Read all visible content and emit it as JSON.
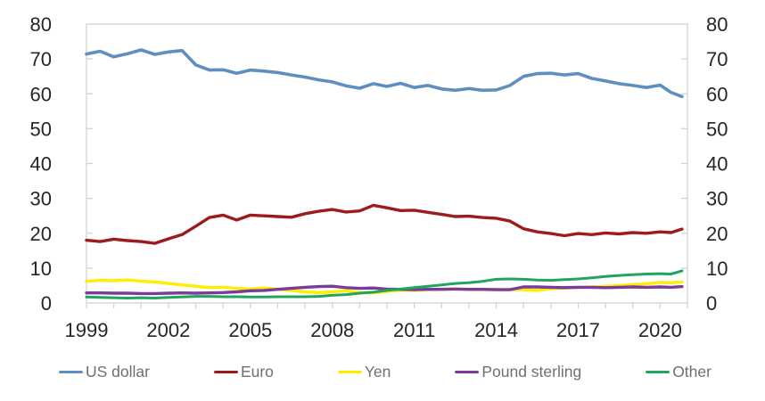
{
  "chart_data": {
    "type": "line",
    "title": "",
    "xlabel": "",
    "ylabel": "",
    "grid": "off",
    "legend_position": "bottom",
    "axis_sides": "left-right-bottom box, tick labels on both left and right",
    "ylim": [
      0,
      80
    ],
    "y_ticks": [
      0,
      10,
      20,
      30,
      40,
      50,
      60,
      70,
      80
    ],
    "x_range": [
      1999,
      2021
    ],
    "x_tick_step": 1,
    "x_label_years": [
      "1999",
      "2002",
      "2005",
      "2008",
      "2011",
      "2014",
      "2017",
      "2020"
    ],
    "axis_color": "#d3d3d3",
    "tick_label_color": "#262626",
    "legend_text_color": "#6f6f6f",
    "x": [
      1999,
      1999.5,
      2000,
      2000.5,
      2001,
      2001.5,
      2002,
      2002.5,
      2003,
      2003.5,
      2004,
      2004.5,
      2005,
      2005.5,
      2006,
      2006.5,
      2007,
      2007.5,
      2008,
      2008.5,
      2009,
      2009.5,
      2010,
      2010.5,
      2011,
      2011.5,
      2012,
      2012.5,
      2013,
      2013.5,
      2014,
      2014.5,
      2015,
      2015.5,
      2016,
      2016.5,
      2017,
      2017.5,
      2018,
      2018.5,
      2019,
      2019.5,
      2020,
      2020.4,
      2020.8
    ],
    "series": [
      {
        "name": "US dollar",
        "color": "#5e8fbe",
        "stroke_width": 3.6,
        "values": [
          71.4,
          72.2,
          70.6,
          71.5,
          72.6,
          71.3,
          72.0,
          72.4,
          68.3,
          66.8,
          66.9,
          65.9,
          66.8,
          66.5,
          66.1,
          65.4,
          64.8,
          64.0,
          63.4,
          62.3,
          61.6,
          62.9,
          62.1,
          63.0,
          61.8,
          62.4,
          61.4,
          61.0,
          61.5,
          61.0,
          61.1,
          62.4,
          65.0,
          65.8,
          65.9,
          65.4,
          65.8,
          64.4,
          63.7,
          62.9,
          62.4,
          61.8,
          62.5,
          60.4,
          59.2
        ]
      },
      {
        "name": "Euro",
        "color": "#9e1b1b",
        "stroke_width": 3.4,
        "values": [
          18.0,
          17.6,
          18.3,
          17.9,
          17.6,
          17.1,
          18.4,
          19.6,
          22.0,
          24.5,
          25.2,
          23.8,
          25.2,
          25.0,
          24.8,
          24.6,
          25.6,
          26.3,
          26.8,
          26.1,
          26.4,
          28.0,
          27.3,
          26.5,
          26.6,
          26.0,
          25.4,
          24.8,
          24.9,
          24.5,
          24.3,
          23.5,
          21.3,
          20.4,
          19.9,
          19.3,
          19.9,
          19.6,
          20.1,
          19.8,
          20.2,
          20.0,
          20.4,
          20.2,
          21.2
        ]
      },
      {
        "name": "Yen",
        "color": "#ffee00",
        "stroke_width": 3.4,
        "values": [
          6.2,
          6.5,
          6.4,
          6.6,
          6.3,
          6.0,
          5.6,
          5.2,
          4.8,
          4.4,
          4.5,
          4.2,
          4.0,
          4.3,
          3.9,
          3.6,
          3.2,
          3.0,
          3.2,
          3.5,
          3.0,
          2.9,
          3.3,
          3.7,
          3.6,
          3.8,
          4.0,
          4.1,
          3.9,
          3.8,
          3.9,
          3.8,
          3.8,
          3.6,
          4.1,
          4.3,
          4.5,
          4.6,
          4.8,
          5.0,
          5.3,
          5.5,
          5.9,
          5.8,
          6.0
        ]
      },
      {
        "name": "Pound sterling",
        "color": "#7a3b9d",
        "stroke_width": 3.4,
        "values": [
          2.9,
          2.9,
          2.8,
          2.8,
          2.7,
          2.7,
          2.8,
          2.9,
          2.8,
          2.9,
          3.0,
          3.2,
          3.5,
          3.6,
          3.9,
          4.2,
          4.5,
          4.7,
          4.8,
          4.4,
          4.2,
          4.3,
          4.0,
          3.9,
          3.8,
          3.9,
          3.9,
          4.0,
          3.9,
          3.9,
          3.8,
          3.8,
          4.6,
          4.6,
          4.5,
          4.4,
          4.5,
          4.5,
          4.4,
          4.5,
          4.6,
          4.5,
          4.6,
          4.5,
          4.7
        ]
      },
      {
        "name": "Other",
        "color": "#21a55e",
        "stroke_width": 3.0,
        "values": [
          1.7,
          1.6,
          1.5,
          1.4,
          1.5,
          1.4,
          1.6,
          1.7,
          1.9,
          1.9,
          1.8,
          1.8,
          1.7,
          1.7,
          1.8,
          1.8,
          1.8,
          1.9,
          2.2,
          2.4,
          2.8,
          3.1,
          3.6,
          4.0,
          4.4,
          4.8,
          5.2,
          5.6,
          5.8,
          6.2,
          6.8,
          6.9,
          6.8,
          6.6,
          6.5,
          6.7,
          6.9,
          7.2,
          7.6,
          7.9,
          8.1,
          8.3,
          8.4,
          8.3,
          9.2
        ]
      }
    ]
  }
}
